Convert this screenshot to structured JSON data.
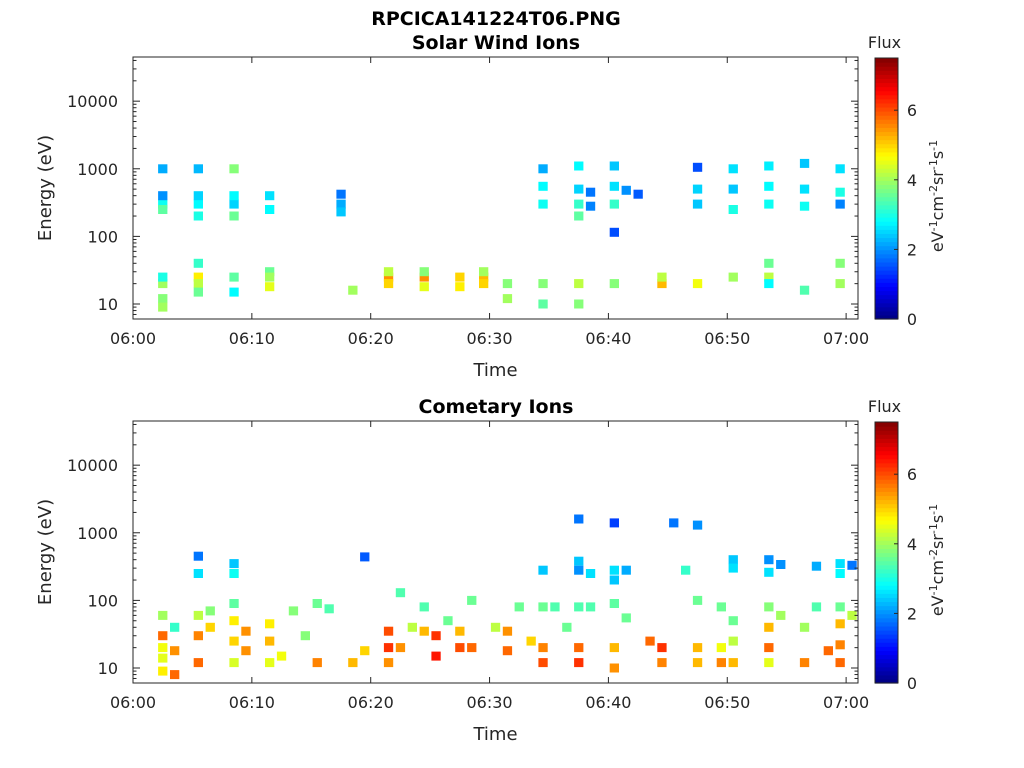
{
  "figure_title": "RPCICA141224T06.PNG",
  "chart_data": [
    {
      "type": "heatmap",
      "title": "Solar Wind Ions",
      "xlabel": "Time",
      "ylabel": "Energy (eV)",
      "x_ticks": [
        "06:00",
        "06:10",
        "06:20",
        "06:30",
        "06:40",
        "06:50",
        "07:00"
      ],
      "y_ticks": [
        "10",
        "100",
        "1000",
        "10000"
      ],
      "y_scale": "log",
      "xlim": [
        "06:00",
        "07:01"
      ],
      "ylim": [
        6,
        45000
      ],
      "colorbar": {
        "title": "Flux",
        "unit": "eV-1cm-2sr-1s-1",
        "range": [
          0,
          7.5
        ],
        "ticks": [
          "0",
          "2",
          "4",
          "6"
        ]
      },
      "cells": [
        [
          "06:02",
          300,
          2.9
        ],
        [
          "06:02",
          1000,
          2.2
        ],
        [
          "06:02",
          400,
          2.0
        ],
        [
          "06:02",
          250,
          3.5
        ],
        [
          "06:02",
          20,
          4.0
        ],
        [
          "06:02",
          25,
          3.0
        ],
        [
          "06:02",
          12,
          3.8
        ],
        [
          "06:02",
          9,
          4.0
        ],
        [
          "06:05",
          300,
          2.8
        ],
        [
          "06:05",
          1000,
          2.3
        ],
        [
          "06:05",
          400,
          2.5
        ],
        [
          "06:05",
          200,
          3.0
        ],
        [
          "06:05",
          40,
          3.2
        ],
        [
          "06:05",
          25,
          4.8
        ],
        [
          "06:05",
          20,
          4.2
        ],
        [
          "06:05",
          15,
          3.6
        ],
        [
          "06:08",
          300,
          2.5
        ],
        [
          "06:08",
          1000,
          3.8
        ],
        [
          "06:08",
          400,
          2.8
        ],
        [
          "06:08",
          200,
          3.6
        ],
        [
          "06:08",
          25,
          3.5
        ],
        [
          "06:08",
          15,
          2.8
        ],
        [
          "06:11",
          400,
          2.6
        ],
        [
          "06:11",
          250,
          2.8
        ],
        [
          "06:11",
          30,
          3.6
        ],
        [
          "06:11",
          25,
          4.0
        ],
        [
          "06:11",
          18,
          4.5
        ],
        [
          "06:17",
          420,
          1.8
        ],
        [
          "06:17",
          300,
          2.2
        ],
        [
          "06:17",
          230,
          2.4
        ],
        [
          "06:18",
          16,
          4.0
        ],
        [
          "06:21",
          25,
          5.5
        ],
        [
          "06:21",
          30,
          4.2
        ],
        [
          "06:21",
          20,
          5.0
        ],
        [
          "06:24",
          25,
          5.5
        ],
        [
          "06:24",
          30,
          3.8
        ],
        [
          "06:24",
          18,
          4.5
        ],
        [
          "06:27",
          25,
          5.0
        ],
        [
          "06:27",
          18,
          4.8
        ],
        [
          "06:29",
          25,
          5.2
        ],
        [
          "06:29",
          30,
          4.0
        ],
        [
          "06:29",
          20,
          5.0
        ],
        [
          "06:31",
          20,
          3.8
        ],
        [
          "06:31",
          12,
          4.0
        ],
        [
          "06:34",
          1000,
          2.2
        ],
        [
          "06:34",
          550,
          2.8
        ],
        [
          "06:34",
          300,
          2.9
        ],
        [
          "06:34",
          20,
          3.8
        ],
        [
          "06:34",
          10,
          3.5
        ],
        [
          "06:37",
          1100,
          2.8
        ],
        [
          "06:37",
          500,
          2.5
        ],
        [
          "06:37",
          300,
          3.2
        ],
        [
          "06:37",
          200,
          3.5
        ],
        [
          "06:37",
          20,
          4.2
        ],
        [
          "06:37",
          10,
          3.8
        ],
        [
          "06:38",
          450,
          1.8
        ],
        [
          "06:38",
          280,
          1.9
        ],
        [
          "06:40",
          1100,
          2.4
        ],
        [
          "06:40",
          550,
          2.6
        ],
        [
          "06:40",
          300,
          3.2
        ],
        [
          "06:40",
          115,
          1.5
        ],
        [
          "06:40",
          20,
          3.8
        ],
        [
          "06:41",
          480,
          2.0
        ],
        [
          "06:42",
          420,
          1.6
        ],
        [
          "06:44",
          20,
          5.2
        ],
        [
          "06:44",
          25,
          4.2
        ],
        [
          "06:47",
          1050,
          1.5
        ],
        [
          "06:47",
          500,
          2.5
        ],
        [
          "06:47",
          300,
          2.4
        ],
        [
          "06:47",
          20,
          4.6
        ],
        [
          "06:50",
          1000,
          2.6
        ],
        [
          "06:50",
          500,
          2.4
        ],
        [
          "06:50",
          250,
          3.0
        ],
        [
          "06:50",
          25,
          4.0
        ],
        [
          "06:53",
          1100,
          2.7
        ],
        [
          "06:53",
          550,
          2.8
        ],
        [
          "06:53",
          300,
          2.9
        ],
        [
          "06:53",
          40,
          3.6
        ],
        [
          "06:53",
          25,
          4.2
        ],
        [
          "06:53",
          20,
          2.8
        ],
        [
          "06:56",
          1200,
          2.4
        ],
        [
          "06:56",
          500,
          2.6
        ],
        [
          "06:56",
          280,
          2.9
        ],
        [
          "06:56",
          16,
          3.4
        ],
        [
          "06:59",
          1000,
          2.6
        ],
        [
          "06:59",
          450,
          3.0
        ],
        [
          "06:59",
          300,
          1.9
        ],
        [
          "06:59",
          40,
          3.8
        ],
        [
          "06:59",
          20,
          4.0
        ]
      ]
    },
    {
      "type": "heatmap",
      "title": "Cometary Ions",
      "xlabel": "Time",
      "ylabel": "Energy (eV)",
      "x_ticks": [
        "06:00",
        "06:10",
        "06:20",
        "06:30",
        "06:40",
        "06:50",
        "07:00"
      ],
      "y_ticks": [
        "10",
        "100",
        "1000",
        "10000"
      ],
      "y_scale": "log",
      "xlim": [
        "06:00",
        "07:01"
      ],
      "ylim": [
        6,
        45000
      ],
      "colorbar": {
        "title": "Flux",
        "unit": "eV-1cm-2sr-1s-1",
        "range": [
          0,
          7.5
        ],
        "ticks": [
          "0",
          "2",
          "4",
          "6"
        ]
      },
      "cells": [
        [
          "06:02",
          60,
          4.0
        ],
        [
          "06:02",
          30,
          5.8
        ],
        [
          "06:02",
          20,
          4.6
        ],
        [
          "06:02",
          14,
          4.5
        ],
        [
          "06:02",
          9,
          4.8
        ],
        [
          "06:03",
          40,
          3.2
        ],
        [
          "06:03",
          18,
          5.5
        ],
        [
          "06:03",
          8,
          5.8
        ],
        [
          "06:05",
          450,
          1.8
        ],
        [
          "06:05",
          250,
          2.6
        ],
        [
          "06:05",
          60,
          4.2
        ],
        [
          "06:05",
          30,
          5.6
        ],
        [
          "06:05",
          12,
          5.8
        ],
        [
          "06:06",
          70,
          3.8
        ],
        [
          "06:06",
          40,
          5.0
        ],
        [
          "06:08",
          350,
          2.4
        ],
        [
          "06:08",
          250,
          2.9
        ],
        [
          "06:08",
          90,
          3.5
        ],
        [
          "06:08",
          50,
          4.8
        ],
        [
          "06:08",
          25,
          5.0
        ],
        [
          "06:08",
          12,
          4.4
        ],
        [
          "06:09",
          35,
          5.5
        ],
        [
          "06:09",
          18,
          5.5
        ],
        [
          "06:11",
          45,
          4.8
        ],
        [
          "06:11",
          25,
          5.2
        ],
        [
          "06:11",
          12,
          4.5
        ],
        [
          "06:12",
          15,
          4.6
        ],
        [
          "06:13",
          70,
          3.8
        ],
        [
          "06:14",
          30,
          3.8
        ],
        [
          "06:15",
          90,
          3.6
        ],
        [
          "06:15",
          12,
          5.6
        ],
        [
          "06:16",
          75,
          3.4
        ],
        [
          "06:18",
          12,
          5.2
        ],
        [
          "06:19",
          18,
          5.0
        ],
        [
          "06:19",
          440,
          1.6
        ],
        [
          "06:21",
          35,
          6.0
        ],
        [
          "06:21",
          20,
          6.2
        ],
        [
          "06:21",
          12,
          5.5
        ],
        [
          "06:22",
          130,
          3.4
        ],
        [
          "06:22",
          20,
          5.5
        ],
        [
          "06:23",
          40,
          4.2
        ],
        [
          "06:24",
          35,
          5.2
        ],
        [
          "06:24",
          80,
          3.4
        ],
        [
          "06:25",
          30,
          6.2
        ],
        [
          "06:25",
          15,
          6.4
        ],
        [
          "06:26",
          50,
          3.6
        ],
        [
          "06:27",
          35,
          5.2
        ],
        [
          "06:27",
          20,
          6.0
        ],
        [
          "06:28",
          100,
          3.6
        ],
        [
          "06:28",
          20,
          5.8
        ],
        [
          "06:30",
          40,
          4.2
        ],
        [
          "06:31",
          35,
          5.5
        ],
        [
          "06:31",
          18,
          5.8
        ],
        [
          "06:32",
          80,
          3.6
        ],
        [
          "06:33",
          25,
          5.0
        ],
        [
          "06:34",
          280,
          2.4
        ],
        [
          "06:34",
          80,
          3.6
        ],
        [
          "06:34",
          20,
          5.6
        ],
        [
          "06:34",
          12,
          6.0
        ],
        [
          "06:35",
          80,
          3.4
        ],
        [
          "06:36",
          40,
          3.6
        ],
        [
          "06:37",
          1600,
          1.8
        ],
        [
          "06:37",
          380,
          2.4
        ],
        [
          "06:37",
          280,
          2.0
        ],
        [
          "06:37",
          80,
          3.4
        ],
        [
          "06:37",
          20,
          5.8
        ],
        [
          "06:37",
          12,
          6.2
        ],
        [
          "06:38",
          250,
          2.6
        ],
        [
          "06:38",
          80,
          3.4
        ],
        [
          "06:40",
          1400,
          1.4
        ],
        [
          "06:40",
          280,
          2.6
        ],
        [
          "06:40",
          200,
          2.4
        ],
        [
          "06:40",
          90,
          3.5
        ],
        [
          "06:40",
          20,
          5.2
        ],
        [
          "06:40",
          10,
          5.5
        ],
        [
          "06:41",
          280,
          2.2
        ],
        [
          "06:41",
          55,
          3.6
        ],
        [
          "06:43",
          25,
          5.8
        ],
        [
          "06:44",
          20,
          6.2
        ],
        [
          "06:44",
          12,
          5.6
        ],
        [
          "06:45",
          1400,
          1.8
        ],
        [
          "06:46",
          280,
          3.2
        ],
        [
          "06:47",
          1300,
          2.0
        ],
        [
          "06:47",
          100,
          3.6
        ],
        [
          "06:47",
          20,
          5.2
        ],
        [
          "06:47",
          12,
          5.2
        ],
        [
          "06:49",
          80,
          3.6
        ],
        [
          "06:49",
          20,
          4.6
        ],
        [
          "06:49",
          12,
          5.6
        ],
        [
          "06:50",
          400,
          2.4
        ],
        [
          "06:50",
          300,
          2.6
        ],
        [
          "06:50",
          50,
          3.6
        ],
        [
          "06:50",
          25,
          4.2
        ],
        [
          "06:50",
          12,
          5.2
        ],
        [
          "06:53",
          400,
          2.0
        ],
        [
          "06:53",
          260,
          2.6
        ],
        [
          "06:53",
          80,
          3.8
        ],
        [
          "06:53",
          40,
          5.2
        ],
        [
          "06:53",
          20,
          5.8
        ],
        [
          "06:53",
          12,
          4.5
        ],
        [
          "06:54",
          340,
          2.0
        ],
        [
          "06:54",
          60,
          4.0
        ],
        [
          "06:56",
          40,
          4.0
        ],
        [
          "06:56",
          12,
          5.6
        ],
        [
          "06:57",
          320,
          2.2
        ],
        [
          "06:57",
          80,
          3.4
        ],
        [
          "06:58",
          18,
          5.8
        ],
        [
          "06:59",
          350,
          2.6
        ],
        [
          "06:59",
          250,
          2.8
        ],
        [
          "06:59",
          80,
          3.6
        ],
        [
          "06:59",
          45,
          5.2
        ],
        [
          "06:59",
          22,
          5.6
        ],
        [
          "06:59",
          12,
          5.8
        ],
        [
          "07:00",
          330,
          1.8
        ],
        [
          "07:00",
          60,
          4.2
        ]
      ]
    }
  ]
}
